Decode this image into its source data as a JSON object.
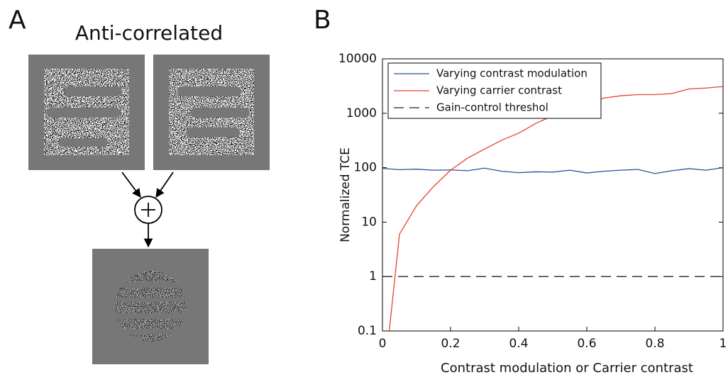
{
  "panel_a": {
    "label": "A",
    "title": "Anti-correlated"
  },
  "chart_data": {
    "type": "line",
    "panel_label": "B",
    "xlabel": "Contrast modulation or Carrier contrast",
    "ylabel": "Normalized TCE",
    "xlim": [
      0,
      1
    ],
    "xticks": [
      0,
      0.2,
      0.4,
      0.6,
      0.8,
      1
    ],
    "ylim": [
      0.1,
      10000
    ],
    "yticks": [
      0.1,
      1,
      10,
      100,
      1000,
      10000
    ],
    "log_y": true,
    "legend": "upper left",
    "series": [
      {
        "name": "Varying contrast modulation",
        "color": "#2b4f9e",
        "dash": false,
        "x": [
          0,
          0.05,
          0.1,
          0.15,
          0.2,
          0.25,
          0.3,
          0.35,
          0.4,
          0.45,
          0.5,
          0.55,
          0.6,
          0.65,
          0.7,
          0.75,
          0.8,
          0.85,
          0.9,
          0.95,
          1
        ],
        "values": [
          97,
          92,
          94,
          90,
          91,
          88,
          98,
          86,
          81,
          84,
          83,
          90,
          80,
          86,
          90,
          93,
          78,
          88,
          96,
          90,
          100
        ]
      },
      {
        "name": "Varying carrier contrast",
        "color": "#e8412c",
        "dash": false,
        "x": [
          0.02,
          0.05,
          0.1,
          0.15,
          0.2,
          0.25,
          0.3,
          0.35,
          0.4,
          0.45,
          0.5,
          0.55,
          0.6,
          0.65,
          0.7,
          0.75,
          0.8,
          0.85,
          0.9,
          0.95,
          1
        ],
        "values": [
          0.1,
          6,
          20,
          45,
          90,
          150,
          220,
          320,
          430,
          650,
          900,
          1300,
          1600,
          1900,
          2100,
          2200,
          2200,
          2300,
          2800,
          2900,
          3100
        ]
      },
      {
        "name": "Gain-control threshol",
        "color": "#222222",
        "dash": true,
        "x": [
          0,
          1
        ],
        "values": [
          1,
          1
        ]
      }
    ]
  }
}
